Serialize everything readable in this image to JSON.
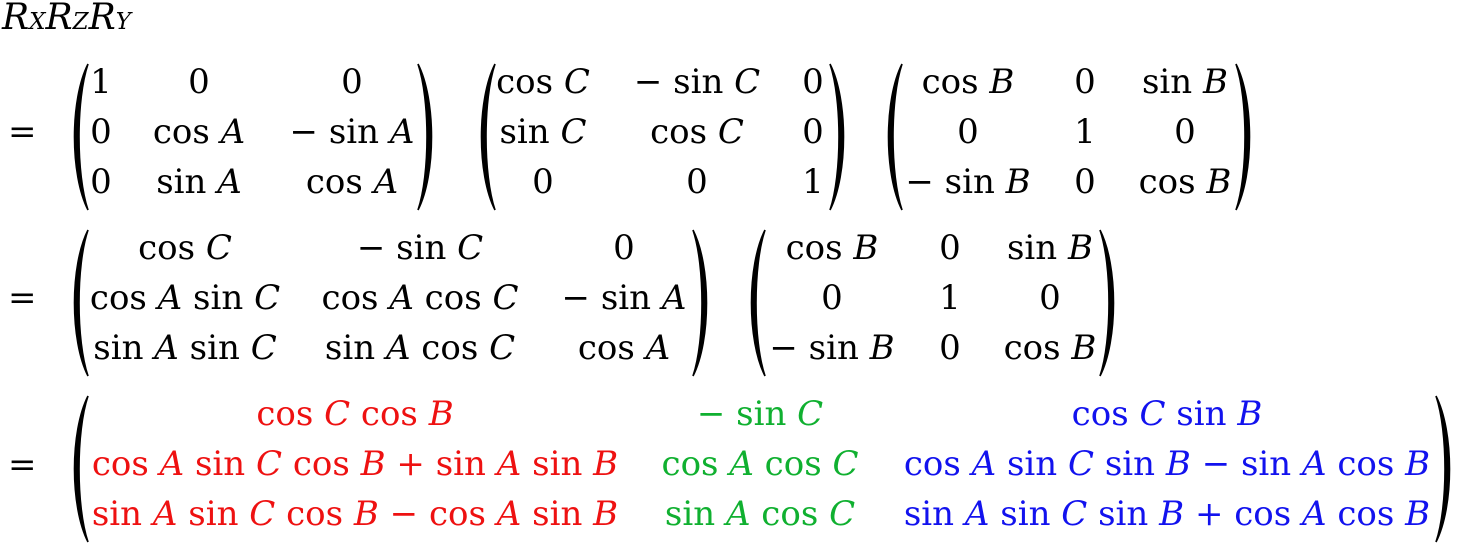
{
  "title": {
    "R1": "R",
    "s1": "X",
    "R2": "R",
    "s2": "Z",
    "R3": "R",
    "s3": "Y"
  },
  "equals": "=",
  "colors": {
    "col1": "#ee1111",
    "col2": "#10b030",
    "col3": "#1212ee"
  },
  "line1": {
    "m1": [
      [
        "1",
        "0",
        "0"
      ],
      [
        "0",
        "cos A",
        "− sin A"
      ],
      [
        "0",
        "sin A",
        "cos A"
      ]
    ],
    "m2": [
      [
        "cos C",
        "− sin C",
        "0"
      ],
      [
        "sin C",
        "cos C",
        "0"
      ],
      [
        "0",
        "0",
        "1"
      ]
    ],
    "m3": [
      [
        "cos B",
        "0",
        "sin B"
      ],
      [
        "0",
        "1",
        "0"
      ],
      [
        "− sin B",
        "0",
        "cos B"
      ]
    ]
  },
  "line2": {
    "m1": [
      [
        "cos C",
        "− sin C",
        "0"
      ],
      [
        "cos A sin C",
        "cos A cos C",
        "− sin A"
      ],
      [
        "sin A sin C",
        "sin A cos C",
        "cos A"
      ]
    ],
    "m2": [
      [
        "cos B",
        "0",
        "sin B"
      ],
      [
        "0",
        "1",
        "0"
      ],
      [
        "− sin B",
        "0",
        "cos B"
      ]
    ]
  },
  "line3": {
    "m1": [
      [
        "cos C cos B",
        "− sin C",
        "cos C sin B"
      ],
      [
        "cos A sin C cos B + sin A sin B",
        "cos A cos C",
        "cos A sin C sin B − sin A cos B"
      ],
      [
        "sin A sin C cos B − cos A sin B",
        "sin A cos C",
        "sin A sin C sin B + cos A cos B"
      ]
    ]
  }
}
